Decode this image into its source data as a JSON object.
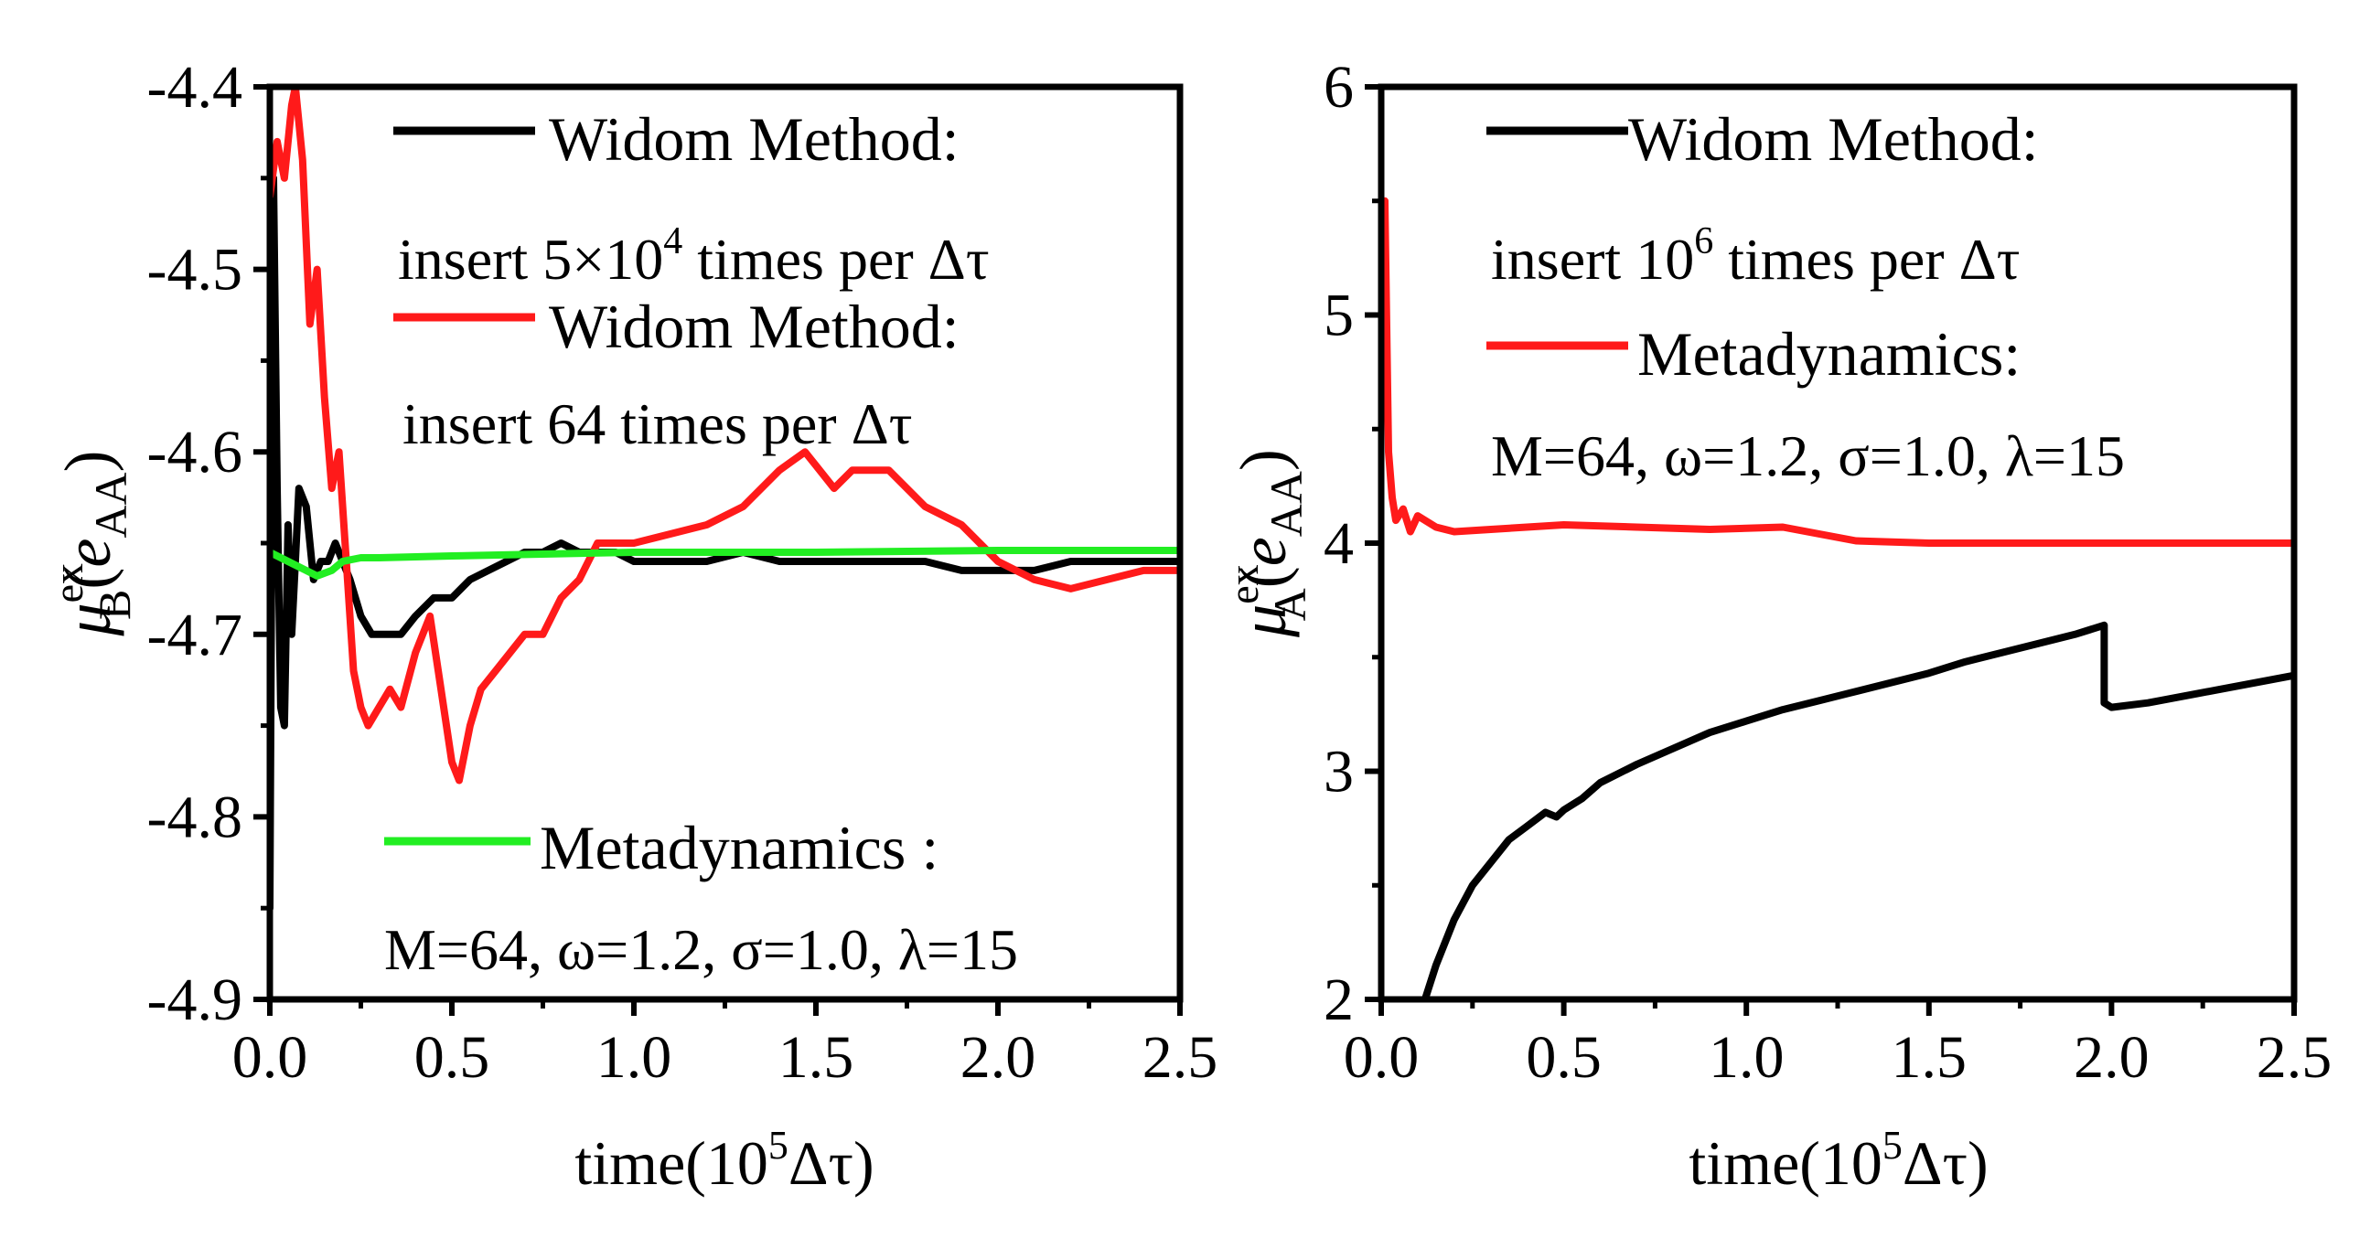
{
  "colors": {
    "black": "#000000",
    "red": "#ff1a1a",
    "green": "#22ee22"
  },
  "chart_data": [
    {
      "type": "line",
      "panel": "left",
      "xlabel": "time(10^5 Δτ)",
      "xlabel_parts": {
        "prefix": "time(10",
        "sup": "5",
        "suffix": "Δτ)"
      },
      "ylabel_parts": {
        "base": "μ",
        "sup": "ex",
        "sub": "B",
        "open": "(",
        "e": "e",
        "e_sub": "AA",
        "close": ")"
      },
      "xlim": [
        0,
        2.5
      ],
      "ylim": [
        -4.9,
        -4.4
      ],
      "xticks": [
        0.0,
        0.5,
        1.0,
        1.5,
        2.0,
        2.5
      ],
      "xtick_labels": [
        "0.0",
        "0.5",
        "1.0",
        "1.5",
        "2.0",
        "2.5"
      ],
      "yticks": [
        -4.9,
        -4.8,
        -4.7,
        -4.6,
        -4.5,
        -4.4
      ],
      "ytick_labels": [
        "-4.9",
        "-4.8",
        "-4.7",
        "-4.6",
        "-4.5",
        "-4.4"
      ],
      "legend": [
        {
          "color": "#000000",
          "line1": "Widom Method:",
          "line2": "insert 5×10",
          "line2_sup": "4",
          "line2_suffix": " times per Δτ"
        },
        {
          "color": "#ff1a1a",
          "line1": "Widom Method:",
          "line2": "insert 64 times per Δτ",
          "line2_sup": "",
          "line2_suffix": ""
        },
        {
          "color": "#22ee22",
          "line1": "Metadynamics :",
          "line2": "M=64, ω=1.2, σ=1.0, λ=15",
          "line2_sup": "",
          "line2_suffix": ""
        }
      ],
      "series": [
        {
          "name": "Widom Method: insert 5×10^4 times per Δτ",
          "color": "#000000",
          "x": [
            0.0,
            0.01,
            0.02,
            0.03,
            0.04,
            0.05,
            0.06,
            0.07,
            0.08,
            0.1,
            0.12,
            0.14,
            0.16,
            0.18,
            0.2,
            0.22,
            0.25,
            0.28,
            0.3,
            0.33,
            0.36,
            0.4,
            0.45,
            0.5,
            0.55,
            0.6,
            0.65,
            0.7,
            0.75,
            0.8,
            0.85,
            0.9,
            0.95,
            1.0,
            1.1,
            1.2,
            1.3,
            1.4,
            1.5,
            1.6,
            1.7,
            1.8,
            1.9,
            2.0,
            2.1,
            2.2,
            2.3,
            2.4,
            2.5
          ],
          "y": [
            -4.85,
            -4.45,
            -4.62,
            -4.74,
            -4.75,
            -4.64,
            -4.7,
            -4.66,
            -4.62,
            -4.63,
            -4.67,
            -4.66,
            -4.66,
            -4.65,
            -4.66,
            -4.67,
            -4.69,
            -4.7,
            -4.7,
            -4.7,
            -4.7,
            -4.69,
            -4.68,
            -4.68,
            -4.67,
            -4.665,
            -4.66,
            -4.655,
            -4.655,
            -4.65,
            -4.655,
            -4.655,
            -4.655,
            -4.66,
            -4.66,
            -4.66,
            -4.655,
            -4.66,
            -4.66,
            -4.66,
            -4.66,
            -4.66,
            -4.665,
            -4.665,
            -4.665,
            -4.66,
            -4.66,
            -4.66,
            -4.66
          ]
        },
        {
          "name": "Widom Method: insert 64 times per Δτ",
          "color": "#ff1a1a",
          "x": [
            0.0,
            0.02,
            0.04,
            0.06,
            0.07,
            0.09,
            0.11,
            0.13,
            0.15,
            0.17,
            0.19,
            0.21,
            0.23,
            0.25,
            0.27,
            0.3,
            0.33,
            0.36,
            0.4,
            0.44,
            0.47,
            0.5,
            0.52,
            0.55,
            0.58,
            0.62,
            0.66,
            0.7,
            0.75,
            0.8,
            0.85,
            0.9,
            1.0,
            1.1,
            1.2,
            1.3,
            1.4,
            1.47,
            1.55,
            1.6,
            1.7,
            1.8,
            1.9,
            2.0,
            2.1,
            2.2,
            2.3,
            2.4,
            2.5
          ],
          "y": [
            -4.46,
            -4.43,
            -4.45,
            -4.41,
            -4.4,
            -4.44,
            -4.53,
            -4.5,
            -4.57,
            -4.62,
            -4.6,
            -4.66,
            -4.72,
            -4.74,
            -4.75,
            -4.74,
            -4.73,
            -4.74,
            -4.71,
            -4.69,
            -4.73,
            -4.77,
            -4.78,
            -4.75,
            -4.73,
            -4.72,
            -4.71,
            -4.7,
            -4.7,
            -4.68,
            -4.67,
            -4.65,
            -4.65,
            -4.645,
            -4.64,
            -4.63,
            -4.61,
            -4.6,
            -4.62,
            -4.61,
            -4.61,
            -4.63,
            -4.64,
            -4.66,
            -4.67,
            -4.675,
            -4.67,
            -4.665,
            -4.665
          ]
        },
        {
          "name": "Metadynamics : M=64, ω=1.2, σ=1.0, λ=15",
          "color": "#22ee22",
          "x": [
            0.0,
            0.05,
            0.1,
            0.13,
            0.17,
            0.2,
            0.25,
            0.3,
            0.5,
            1.0,
            1.5,
            2.0,
            2.5
          ],
          "y": [
            -4.655,
            -4.66,
            -4.665,
            -4.668,
            -4.665,
            -4.66,
            -4.658,
            -4.658,
            -4.657,
            -4.655,
            -4.655,
            -4.654,
            -4.654
          ]
        }
      ]
    },
    {
      "type": "line",
      "panel": "right",
      "xlabel": "time(10^5 Δτ)",
      "xlabel_parts": {
        "prefix": "time(10",
        "sup": "5",
        "suffix": "Δτ)"
      },
      "ylabel_parts": {
        "base": "μ",
        "sup": "ex",
        "sub": "A",
        "open": "(",
        "e": "e",
        "e_sub": "AA",
        "close": ")"
      },
      "xlim": [
        0,
        2.5
      ],
      "ylim": [
        2,
        6
      ],
      "xticks": [
        0.0,
        0.5,
        1.0,
        1.5,
        2.0,
        2.5
      ],
      "xtick_labels": [
        "0.0",
        "0.5",
        "1.0",
        "1.5",
        "2.0",
        "2.5"
      ],
      "yticks": [
        2,
        3,
        4,
        5,
        6
      ],
      "ytick_labels": [
        "2",
        "3",
        "4",
        "5",
        "6"
      ],
      "legend": [
        {
          "color": "#000000",
          "line1": "Widom Method:",
          "line2": "insert 10",
          "line2_sup": "6",
          "line2_suffix": " times per Δτ"
        },
        {
          "color": "#ff1a1a",
          "line1": "Metadynamics:",
          "line2": "M=64, ω=1.2, σ=1.0, λ=15",
          "line2_sup": "",
          "line2_suffix": ""
        }
      ],
      "series": [
        {
          "name": "Widom Method: insert 10^6 times per Δτ",
          "color": "#000000",
          "x": [
            0.12,
            0.15,
            0.2,
            0.25,
            0.3,
            0.35,
            0.4,
            0.45,
            0.48,
            0.5,
            0.55,
            0.6,
            0.7,
            0.8,
            0.9,
            1.0,
            1.1,
            1.2,
            1.3,
            1.4,
            1.5,
            1.6,
            1.7,
            1.8,
            1.9,
            1.98,
            1.98,
            2.0,
            2.1,
            2.2,
            2.3,
            2.4,
            2.5
          ],
          "y": [
            2.0,
            2.15,
            2.35,
            2.5,
            2.6,
            2.7,
            2.76,
            2.82,
            2.8,
            2.83,
            2.88,
            2.95,
            3.03,
            3.1,
            3.17,
            3.22,
            3.27,
            3.31,
            3.35,
            3.39,
            3.43,
            3.48,
            3.52,
            3.56,
            3.6,
            3.64,
            3.3,
            3.28,
            3.3,
            3.33,
            3.36,
            3.39,
            3.42
          ]
        },
        {
          "name": "Metadynamics: M=64, ω=1.2, σ=1.0, λ=15",
          "color": "#ff1a1a",
          "x": [
            0.0,
            0.01,
            0.02,
            0.03,
            0.04,
            0.06,
            0.08,
            0.1,
            0.15,
            0.2,
            0.3,
            0.5,
            0.7,
            0.9,
            1.1,
            1.2,
            1.3,
            1.5,
            1.7,
            1.9,
            2.1,
            2.3,
            2.5
          ],
          "y": [
            4.7,
            5.5,
            4.4,
            4.2,
            4.1,
            4.15,
            4.05,
            4.12,
            4.07,
            4.05,
            4.06,
            4.08,
            4.07,
            4.06,
            4.07,
            4.04,
            4.01,
            4.0,
            4.0,
            4.0,
            4.0,
            4.0,
            4.0
          ]
        }
      ]
    }
  ]
}
